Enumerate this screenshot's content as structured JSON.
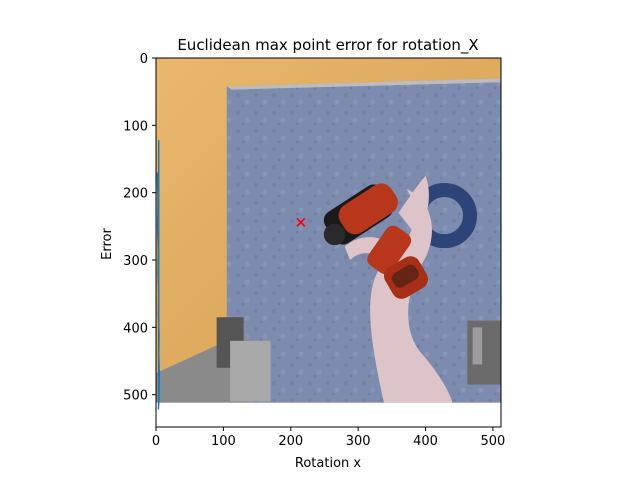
{
  "chart_data": {
    "type": "line",
    "title": "Euclidean max point error for rotation_X",
    "xlabel": "Rotation x",
    "ylabel": "Error",
    "xlim": [
      0,
      512
    ],
    "ylim": [
      548,
      0
    ],
    "y_inverted": true,
    "xticks": [
      0,
      100,
      200,
      300,
      400,
      500
    ],
    "yticks": [
      0,
      100,
      200,
      300,
      400,
      500
    ],
    "grid": false,
    "background_image": {
      "description": "camera render of a red-and-black cordless drill held above a blue patterned tabletop, grey robot gripper fingers at the bottom",
      "extent": [
        0,
        512,
        512,
        0
      ]
    },
    "series": [
      {
        "color": "#1f77b4",
        "x": [
          2,
          3,
          2.5,
          3.5,
          3,
          4,
          3.5,
          4.5,
          4,
          5,
          4.5,
          3.5
        ],
        "y": [
          170,
          210,
          250,
          290,
          320,
          350,
          380,
          410,
          440,
          470,
          500,
          522
        ]
      },
      {
        "color": "#1f77b4",
        "x": [
          4,
          4,
          4
        ],
        "y": [
          122,
          300,
          515
        ]
      }
    ],
    "marker": {
      "x": 215,
      "y": 244,
      "symbol": "x",
      "color": "#ff0000"
    }
  }
}
